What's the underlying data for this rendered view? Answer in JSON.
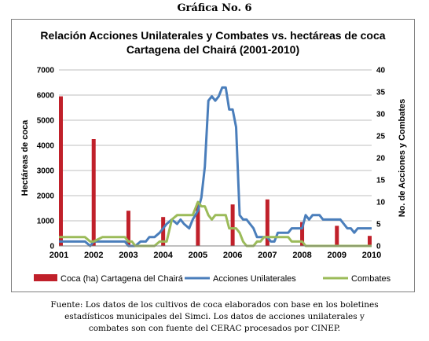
{
  "figure_label": "Gráfica No. 6",
  "source_text": [
    "Fuente: Los datos de los cultivos de coca elaborados con base en los boletines",
    "estadísticos municipales del Simci. Los datos de acciones unilaterales y",
    "combates son con fuente del CERAC procesados por CINEP."
  ],
  "chart_data": {
    "type": "bar+line",
    "title": [
      "Relación Acciones Unilaterales y Combates vs. hectáreas de coca",
      "Cartagena del Chairá (2001-2010)"
    ],
    "ylabel_left": "Hectáreas de coca",
    "ylabel_right": "No. de Acciones  y Combates",
    "ylim_left": [
      0,
      7000
    ],
    "yticks_left": [
      0,
      1000,
      2000,
      3000,
      4000,
      5000,
      6000,
      7000
    ],
    "ylim_right": [
      0,
      40
    ],
    "yticks_right": [
      0,
      5,
      10,
      15,
      20,
      25,
      30,
      35,
      40
    ],
    "xlim": [
      2001,
      2010
    ],
    "xticks": [
      2001,
      2002,
      2003,
      2004,
      2005,
      2006,
      2007,
      2008,
      2009,
      2010
    ],
    "grid": "horizontal",
    "legend_position": "bottom",
    "bars": {
      "name": "Coca (ha) Cartagena del Chairá",
      "color": "#c0202a",
      "axis": "left",
      "x": [
        2001,
        2002,
        2003,
        2004,
        2005,
        2006,
        2007,
        2008,
        2009,
        2010
      ],
      "values": [
        5950,
        4250,
        1400,
        1150,
        1700,
        1650,
        1850,
        950,
        800,
        400
      ]
    },
    "series": [
      {
        "name": "Acciones Unilaterales",
        "color": "#4a7ebb",
        "axis": "right",
        "x": [
          2001,
          2001.25,
          2001.5,
          2001.75,
          2001.9,
          2002,
          2002.25,
          2002.5,
          2002.75,
          2002.9,
          2003,
          2003.1,
          2003.2,
          2003.35,
          2003.5,
          2003.6,
          2003.75,
          2003.9,
          2004,
          2004.1,
          2004.25,
          2004.4,
          2004.5,
          2004.6,
          2004.75,
          2004.85,
          2005,
          2005.1,
          2005.2,
          2005.3,
          2005.4,
          2005.5,
          2005.6,
          2005.7,
          2005.8,
          2005.9,
          2006,
          2006.1,
          2006.2,
          2006.3,
          2006.4,
          2006.5,
          2006.6,
          2006.7,
          2006.8,
          2006.9,
          2007,
          2007.1,
          2007.2,
          2007.3,
          2007.4,
          2007.5,
          2007.6,
          2007.7,
          2007.8,
          2007.9,
          2008,
          2008.1,
          2008.2,
          2008.3,
          2008.4,
          2008.5,
          2008.6,
          2008.7,
          2008.8,
          2008.9,
          2009,
          2009.1,
          2009.2,
          2009.3,
          2009.4,
          2009.5,
          2009.6,
          2009.7,
          2009.8,
          2009.9,
          2010
        ],
        "values": [
          1,
          1,
          1,
          1,
          0,
          1,
          1,
          1,
          1,
          1,
          0,
          0,
          0,
          1,
          1,
          2,
          2,
          3,
          4,
          5,
          6,
          5,
          6,
          5,
          4,
          6,
          8,
          11,
          18,
          33,
          34,
          33,
          34,
          36,
          36,
          31,
          31,
          27,
          7,
          6,
          6,
          5,
          4,
          2,
          2,
          2,
          2,
          1,
          1,
          3,
          3,
          3,
          3,
          4,
          4,
          4,
          4,
          7,
          6,
          7,
          7,
          7,
          6,
          6,
          6,
          6,
          6,
          6,
          5,
          4,
          4,
          3,
          4,
          4,
          4,
          4,
          4
        ]
      },
      {
        "name": "Combates",
        "color": "#9bbb59",
        "axis": "right",
        "x": [
          2001,
          2001.25,
          2001.5,
          2001.75,
          2001.9,
          2002,
          2002.25,
          2002.5,
          2002.75,
          2002.9,
          2003,
          2003.1,
          2003.2,
          2003.35,
          2003.5,
          2003.6,
          2003.75,
          2003.9,
          2004,
          2004.1,
          2004.25,
          2004.4,
          2004.5,
          2004.6,
          2004.75,
          2004.85,
          2005,
          2005.1,
          2005.2,
          2005.3,
          2005.4,
          2005.5,
          2005.6,
          2005.7,
          2005.8,
          2005.9,
          2006,
          2006.1,
          2006.2,
          2006.3,
          2006.4,
          2006.5,
          2006.6,
          2006.7,
          2006.8,
          2006.9,
          2007,
          2007.1,
          2007.2,
          2007.3,
          2007.4,
          2007.5,
          2007.6,
          2007.7,
          2007.8,
          2007.9,
          2008,
          2008.1,
          2008.2,
          2008.3,
          2008.4,
          2008.5,
          2008.6,
          2008.7,
          2008.8,
          2008.9,
          2009,
          2009.1,
          2009.2,
          2009.3,
          2009.4,
          2009.5,
          2009.6,
          2009.7,
          2009.8,
          2009.9,
          2010
        ],
        "values": [
          2,
          2,
          2,
          2,
          1,
          1,
          2,
          2,
          2,
          2,
          1,
          1,
          0,
          0,
          0,
          0,
          0,
          1,
          1,
          1,
          6,
          7,
          7,
          7,
          7,
          7,
          10,
          9,
          9,
          7,
          6,
          7,
          7,
          7,
          7,
          4,
          4,
          4,
          3,
          1,
          0,
          0,
          0,
          1,
          1,
          2,
          2,
          2,
          2,
          2,
          2,
          2,
          2,
          1,
          1,
          1,
          1,
          0,
          0,
          0,
          0,
          0,
          0,
          0,
          0,
          0,
          0,
          0,
          0,
          0,
          0,
          0,
          0,
          0,
          0,
          0,
          0
        ]
      }
    ]
  }
}
